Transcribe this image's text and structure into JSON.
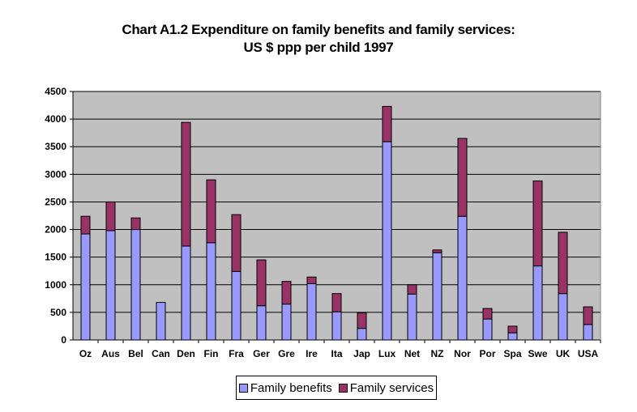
{
  "title_line1": "Chart A1.2 Expenditure on family benefits and family services:",
  "title_line2": "US $ ppp per child 1997",
  "colors": {
    "plot_bg": "#c0c0c0",
    "benefits": "#9999ff",
    "services": "#993366",
    "grid": "#000000"
  },
  "chart_data": {
    "type": "bar",
    "stacked": true,
    "categories": [
      "Oz",
      "Aus",
      "Bel",
      "Can",
      "Den",
      "Fin",
      "Fra",
      "Ger",
      "Gre",
      "Ire",
      "Ita",
      "Jap",
      "Lux",
      "Net",
      "NZ",
      "Nor",
      "Por",
      "Spa",
      "Swe",
      "UK",
      "USA"
    ],
    "series": [
      {
        "name": "Family benefits",
        "values": [
          1920,
          1980,
          2000,
          680,
          1700,
          1760,
          1240,
          620,
          650,
          1020,
          510,
          210,
          3590,
          830,
          1580,
          2240,
          380,
          130,
          1340,
          840,
          280
        ]
      },
      {
        "name": "Family services",
        "values": [
          320,
          520,
          210,
          0,
          2240,
          1140,
          1030,
          830,
          410,
          120,
          330,
          280,
          640,
          170,
          50,
          1410,
          190,
          120,
          1540,
          1110,
          320
        ]
      }
    ],
    "ylim": [
      0,
      4500
    ],
    "yticks": [
      0,
      500,
      1000,
      1500,
      2000,
      2500,
      3000,
      3500,
      4000,
      4500
    ],
    "xlabel": "",
    "ylabel": "",
    "grid": true,
    "legend_position": "bottom-center"
  }
}
